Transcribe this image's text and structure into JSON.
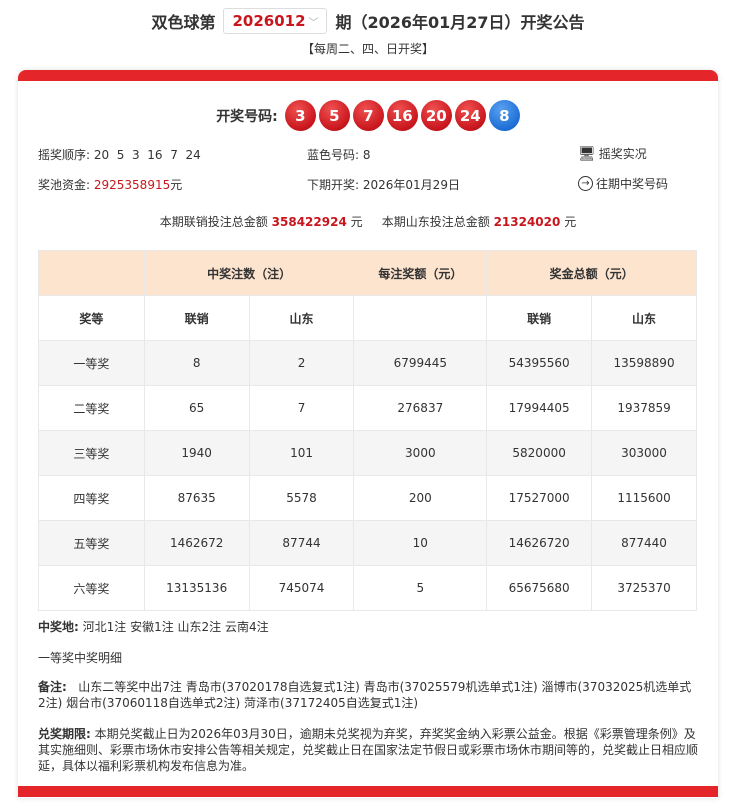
{
  "header": {
    "prefix": "双色球第",
    "issue": "2026012",
    "suffix": "期（2026年01月27日）开奖公告",
    "schedule": "【每周二、四、日开奖】"
  },
  "draw": {
    "label": "开奖号码:",
    "red_balls": [
      "3",
      "5",
      "7",
      "16",
      "20",
      "24"
    ],
    "blue_ball": "8"
  },
  "info": {
    "order_label": "摇奖顺序:",
    "order": "20  5  3  16  7  24",
    "blue_label": "蓝色号码:",
    "blue": "8",
    "live_link": "摇奖实况",
    "pool_label": "奖池资金:",
    "pool": "2925358915",
    "pool_unit": "元",
    "next_label": "下期开奖:",
    "next": "2026年01月29日",
    "history_link": "往期中奖号码"
  },
  "sales": {
    "national_label": "本期联销投注总金额",
    "national": "358422924",
    "shandong_label": "本期山东投注总金额",
    "shandong": "21324020",
    "unit": "元"
  },
  "table": {
    "group_headers": [
      "中奖注数（注）",
      "每注奖额（元）",
      "奖金总额（元）"
    ],
    "sub_headers": [
      "奖等",
      "联销",
      "山东",
      "联销",
      "山东"
    ],
    "rows": [
      [
        "一等奖",
        "8",
        "2",
        "6799445",
        "54395560",
        "13598890"
      ],
      [
        "二等奖",
        "65",
        "7",
        "276837",
        "17994405",
        "1937859"
      ],
      [
        "三等奖",
        "1940",
        "101",
        "3000",
        "5820000",
        "303000"
      ],
      [
        "四等奖",
        "87635",
        "5578",
        "200",
        "17527000",
        "1115600"
      ],
      [
        "五等奖",
        "1462672",
        "87744",
        "10",
        "14626720",
        "877440"
      ],
      [
        "六等奖",
        "13135136",
        "745074",
        "5",
        "65675680",
        "3725370"
      ]
    ]
  },
  "footer": {
    "winners_label": "中奖地:",
    "winners": "河北1注 安徽1注 山东2注 云南4注",
    "detail_title": "一等奖中奖明细",
    "note_label": "备注:",
    "note": "山东二等奖中出7注 青岛市(37020178自选复式1注) 青岛市(37025579机选单式1注) 淄博市(37032025机选单式2注) 烟台市(37060118自选单式2注) 菏泽市(37172405自选复式1注)",
    "deadline_label": "兑奖期限:",
    "deadline": "本期兑奖截止日为2026年03月30日，逾期未兑奖视为弃奖，弃奖奖金纳入彩票公益金。根据《彩票管理条例》及其实施细则、彩票市场休市安排公告等相关规定，兑奖截止日在国家法定节假日或彩票市场休市期间等的，兑奖截止日相应顺延，具体以福利彩票机构发布信息为准。"
  },
  "colors": {
    "accent": "#e4262a",
    "red_ball": "#c8161d",
    "blue_ball": "#1d6fd6",
    "header_bg": "#fde4cf"
  }
}
